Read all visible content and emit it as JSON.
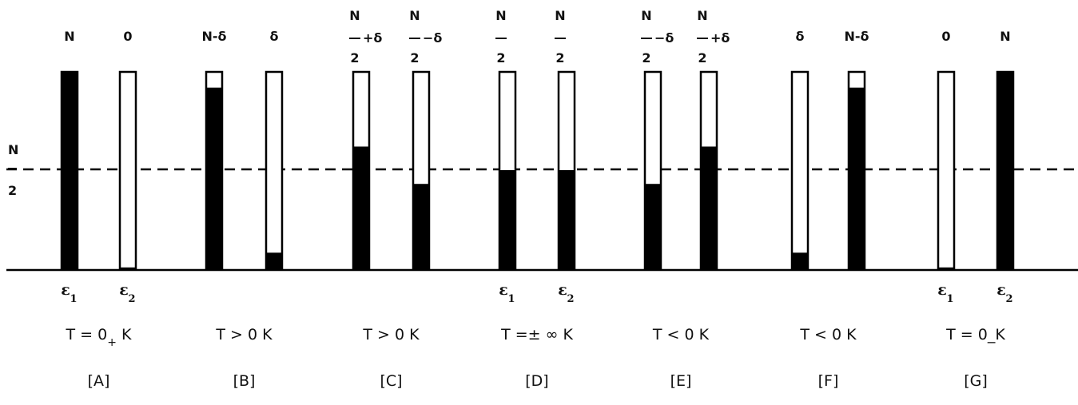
{
  "axis_label": {
    "numerator": "N",
    "denominator": "2"
  },
  "columns": [
    {
      "case": "[A]",
      "temperature": {
        "text": "T = 0",
        "sub": "+",
        "unit": " K"
      },
      "show_eps": true,
      "bars": [
        {
          "fill": 1.0,
          "label": {
            "type": "plain",
            "text": "N"
          }
        },
        {
          "fill": 0.0,
          "label": {
            "type": "plain",
            "text": "0"
          }
        }
      ]
    },
    {
      "case": "[B]",
      "temperature": {
        "text": "T > 0",
        "sub": "",
        "unit": " K"
      },
      "show_eps": false,
      "bars": [
        {
          "fill": 0.92,
          "label": {
            "type": "plain",
            "text": "N-δ"
          }
        },
        {
          "fill": 0.08,
          "label": {
            "type": "plain",
            "text": "δ"
          }
        }
      ]
    },
    {
      "case": "[C]",
      "temperature": {
        "text": "T > 0",
        "sub": "",
        "unit": "  K"
      },
      "show_eps": false,
      "bars": [
        {
          "fill": 0.62,
          "label": {
            "type": "frac",
            "num": "N",
            "den": "2",
            "suffix": "+δ"
          }
        },
        {
          "fill": 0.43,
          "label": {
            "type": "frac",
            "num": "N",
            "den": "2",
            "suffix": "−δ"
          }
        }
      ]
    },
    {
      "case": "[D]",
      "temperature": {
        "text": "T =± ∞",
        "sub": "",
        "unit": " K"
      },
      "show_eps": true,
      "bars": [
        {
          "fill": 0.5,
          "label": {
            "type": "frac",
            "num": "N",
            "den": "2",
            "suffix": ""
          }
        },
        {
          "fill": 0.5,
          "label": {
            "type": "frac",
            "num": "N",
            "den": "2",
            "suffix": ""
          }
        }
      ]
    },
    {
      "case": "[E]",
      "temperature": {
        "text": "T < 0",
        "sub": "",
        "unit": "  K"
      },
      "show_eps": false,
      "bars": [
        {
          "fill": 0.43,
          "label": {
            "type": "frac",
            "num": "N",
            "den": "2",
            "suffix": "−δ"
          }
        },
        {
          "fill": 0.62,
          "label": {
            "type": "frac",
            "num": "N",
            "den": "2",
            "suffix": "+δ"
          }
        }
      ]
    },
    {
      "case": "[F]",
      "temperature": {
        "text": "T < 0",
        "sub": "",
        "unit": "  K"
      },
      "show_eps": false,
      "bars": [
        {
          "fill": 0.08,
          "label": {
            "type": "plain",
            "text": "δ"
          }
        },
        {
          "fill": 0.92,
          "label": {
            "type": "plain",
            "text": "N-δ"
          }
        }
      ]
    },
    {
      "case": "[G]",
      "temperature": {
        "text": "T = 0_",
        "sub": "",
        "unit": "K"
      },
      "show_eps": true,
      "bars": [
        {
          "fill": 0.0,
          "label": {
            "type": "plain",
            "text": "0"
          }
        },
        {
          "fill": 1.0,
          "label": {
            "type": "plain",
            "text": "N"
          }
        }
      ]
    }
  ],
  "eps": {
    "symbol": "ε",
    "sub1": "1",
    "sub2": "2"
  }
}
